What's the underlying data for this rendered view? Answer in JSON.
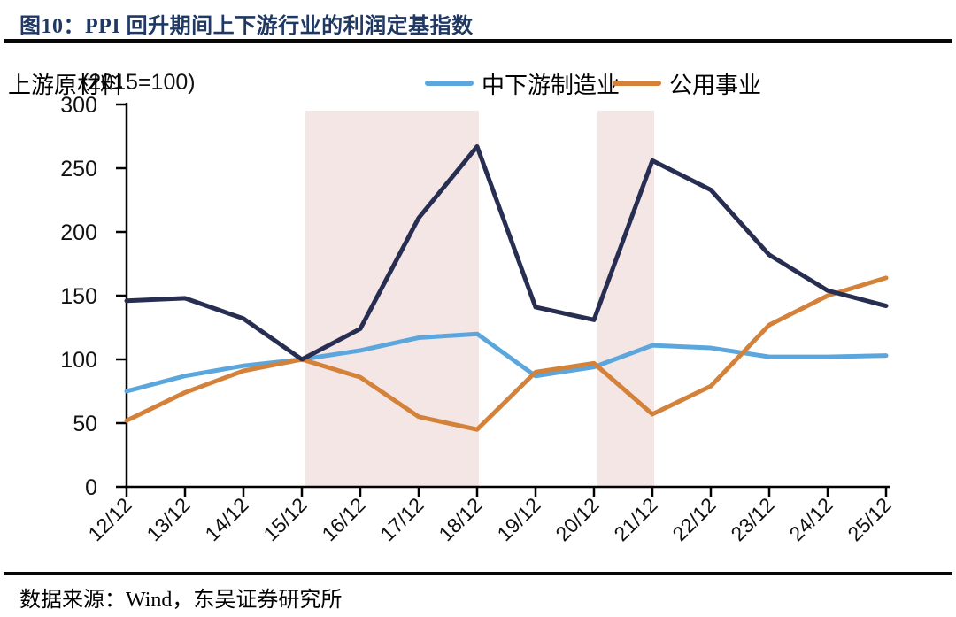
{
  "header": {
    "title": "图10：PPI 回升期间上下游行业的利润定基指数"
  },
  "legend": {
    "axis_note": "(2015=100)",
    "items": [
      {
        "key": "midstream-downstream-manufacturing",
        "label": "中下游制造业",
        "color": "#5ba7dd"
      },
      {
        "key": "utilities",
        "label": "公用事业",
        "color": "#d4813a"
      },
      {
        "key": "upstream-raw-materials",
        "label": "上游原材料",
        "color": "#272e52"
      }
    ]
  },
  "chart_data": {
    "type": "line",
    "title": "PPI 回升期间上下游行业的利润定基指数",
    "axis_note": "(2015=100)",
    "categories": [
      "12/12",
      "13/12",
      "14/12",
      "15/12",
      "16/12",
      "17/12",
      "18/12",
      "19/12",
      "20/12",
      "21/12",
      "22/12",
      "23/12",
      "24/12",
      "25/12"
    ],
    "series": [
      {
        "key": "midstream-downstream-manufacturing",
        "name": "中下游制造业",
        "color": "#5ba7dd",
        "values": [
          75,
          87,
          95,
          100,
          107,
          117,
          120,
          87,
          94,
          111,
          109,
          102,
          102,
          103
        ]
      },
      {
        "key": "utilities",
        "name": "公用事业",
        "color": "#d4813a",
        "values": [
          52,
          74,
          91,
          100,
          86,
          55,
          45,
          90,
          97,
          57,
          79,
          127,
          150,
          164
        ]
      },
      {
        "key": "upstream-raw-materials",
        "name": "上游原材料",
        "color": "#272e52",
        "values": [
          146,
          148,
          132,
          100,
          124,
          211,
          267,
          141,
          131,
          256,
          233,
          182,
          154,
          142
        ]
      }
    ],
    "ylim": [
      0,
      300
    ],
    "yticks": [
      0,
      50,
      100,
      150,
      200,
      250,
      300
    ],
    "grid": false,
    "legend_position": "top",
    "shaded_bands": [
      {
        "from": "15/12",
        "to": "18/12",
        "color": "#f4e6e5"
      },
      {
        "from": "20/12",
        "to": "21/12",
        "color": "#f4e6e5"
      }
    ]
  },
  "footer": {
    "source": "数据来源：Wind，东吴证券研究所"
  }
}
